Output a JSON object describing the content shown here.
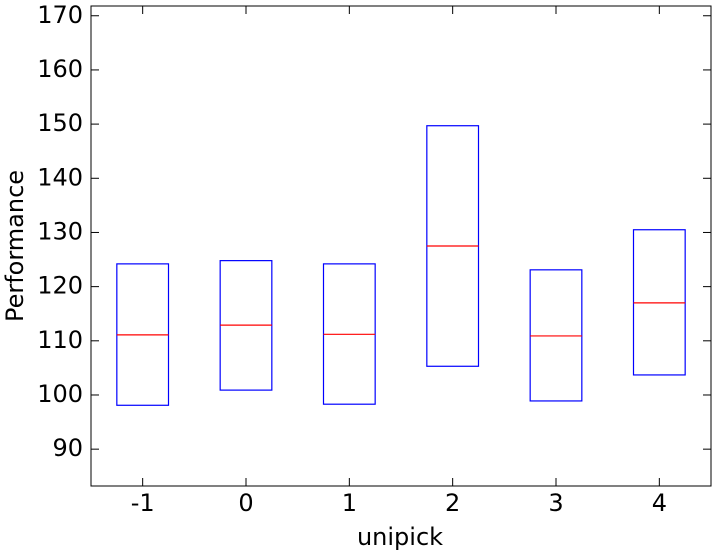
{
  "chart_data": {
    "type": "box",
    "xlabel": "unipick",
    "ylabel": "Performance",
    "categories": [
      "-1",
      "0",
      "1",
      "2",
      "3",
      "4"
    ],
    "q1": [
      98.1,
      100.9,
      98.3,
      105.3,
      98.9,
      103.7
    ],
    "median": [
      111.1,
      112.9,
      111.2,
      127.5,
      110.9,
      117.0
    ],
    "q3": [
      124.2,
      124.8,
      124.2,
      149.7,
      123.1,
      130.5
    ],
    "box_color": "#0000ff",
    "median_color": "#ff0000",
    "ylim": [
      83.2,
      171.8
    ],
    "yticks": [
      90,
      100,
      110,
      120,
      130,
      140,
      150,
      160,
      170
    ],
    "grid": false
  }
}
